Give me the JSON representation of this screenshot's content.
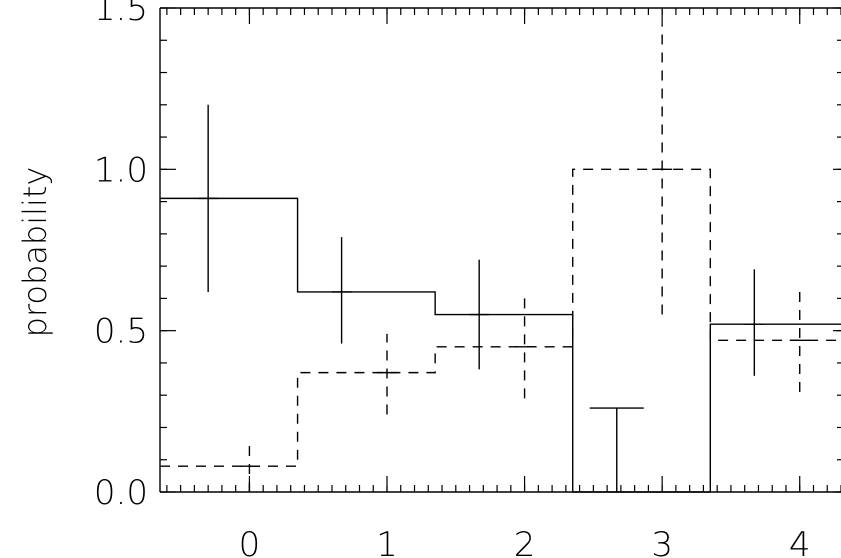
{
  "chart_data": {
    "type": "step",
    "title": "",
    "xlabel": "",
    "ylabel": "probability",
    "x_ticks": [
      "0",
      "1",
      "2",
      "3",
      "4"
    ],
    "y_ticks": [
      "0.0",
      "0.5",
      "1.0",
      "1.5"
    ],
    "xlim": [
      -0.65,
      4.3
    ],
    "ylim": [
      0,
      1.5
    ],
    "bin_edges": [
      -0.65,
      0.35,
      1.35,
      2.35,
      3.35,
      4.35
    ],
    "grid": false,
    "legend": "none",
    "series": [
      {
        "style": "solid",
        "values": [
          0.91,
          0.62,
          0.55,
          0.0,
          0.52
        ],
        "error_x": [
          -0.3,
          0.67,
          1.67,
          2.67,
          3.67
        ],
        "error_low": [
          0.62,
          0.46,
          0.38,
          0.0,
          0.36
        ],
        "error_high": [
          1.2,
          0.79,
          0.72,
          0.26,
          0.69
        ]
      },
      {
        "style": "dashed",
        "values": [
          0.08,
          0.37,
          0.45,
          1.0,
          0.47
        ],
        "error_x": [
          0.0,
          1.0,
          2.0,
          3.0,
          4.0
        ],
        "error_low": [
          0.0,
          0.24,
          0.29,
          0.55,
          0.31
        ],
        "error_high": [
          0.16,
          0.49,
          0.6,
          1.45,
          0.63
        ]
      }
    ]
  }
}
